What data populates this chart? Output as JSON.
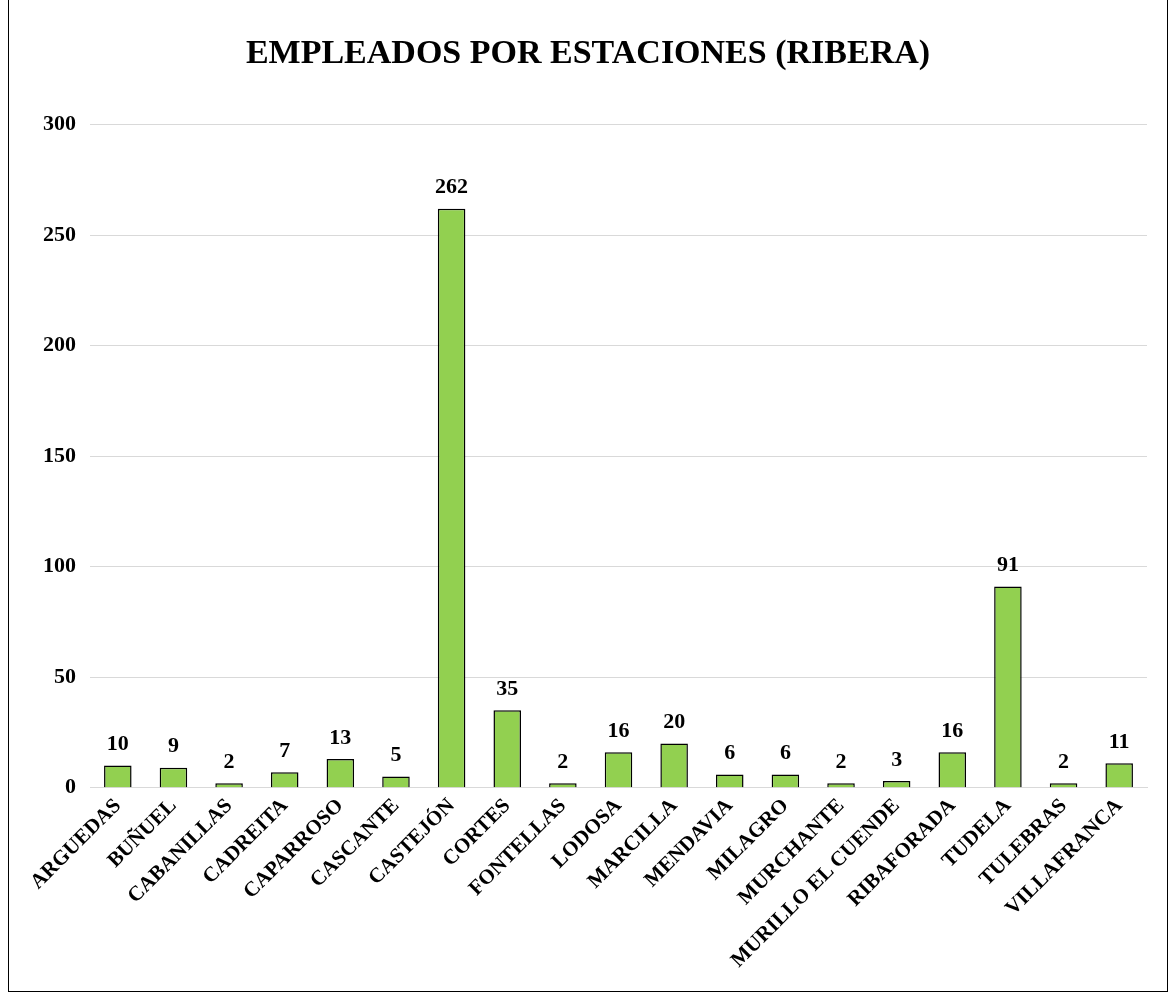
{
  "chart_data": {
    "type": "bar",
    "title": "EMPLEADOS POR ESTACIONES (RIBERA)",
    "categories": [
      "ARGUEDAS",
      "BUÑUEL",
      "CABANILLAS",
      "CADREITA",
      "CAPARROSO",
      "CASCANTE",
      "CASTEJÓN",
      "CORTES",
      "FONTELLAS",
      "LODOSA",
      "MARCILLA",
      "MENDAVIA",
      "MILAGRO",
      "MURCHANTE",
      "MURILLO EL CUENDE",
      "RIBAFORADA",
      "TUDELA",
      "TULEBRAS",
      "VILLAFRANCA"
    ],
    "values": [
      10,
      9,
      2,
      7,
      13,
      5,
      262,
      35,
      2,
      16,
      20,
      6,
      6,
      2,
      3,
      16,
      91,
      2,
      11
    ],
    "color": "#92d050",
    "ylim": [
      0,
      300
    ],
    "yticks": [
      0,
      50,
      100,
      150,
      200,
      250,
      300
    ],
    "grid": "y",
    "data_labels": true
  }
}
